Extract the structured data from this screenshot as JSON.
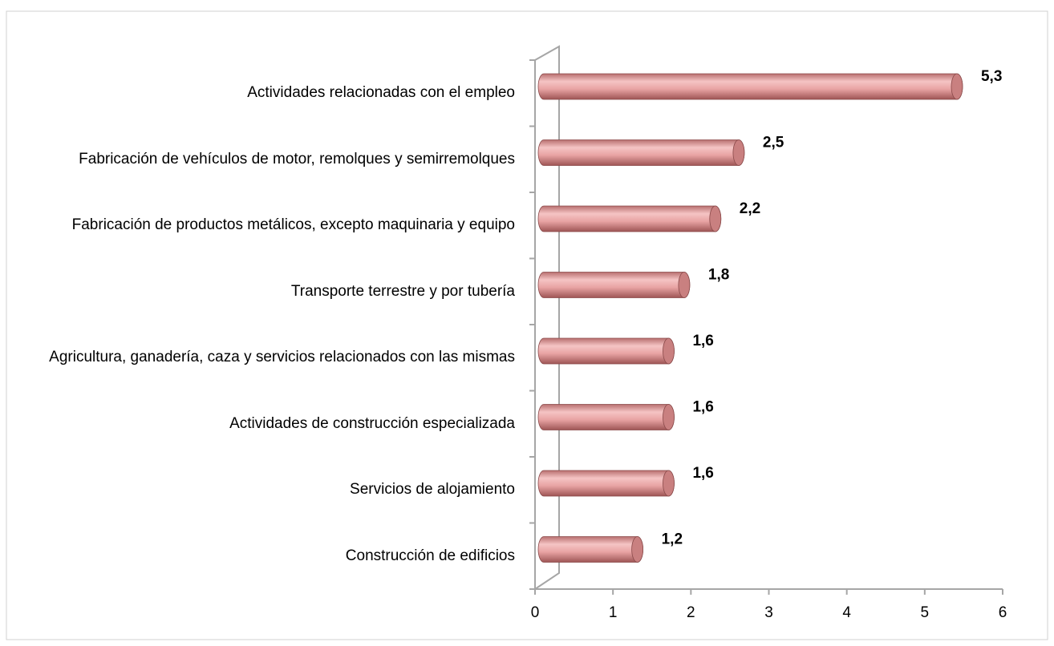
{
  "chart_data": {
    "type": "bar",
    "orientation": "horizontal",
    "categories": [
      "Actividades relacionadas con el empleo",
      "Fabricación de vehículos de motor, remolques y semirremolques",
      "Fabricación de productos metálicos, excepto maquinaria y equipo",
      "Transporte terrestre y por tubería",
      "Agricultura, ganadería, caza y servicios relacionados con las mismas",
      "Actividades de construcción especializada",
      "Servicios de alojamiento",
      "Construcción de edificios"
    ],
    "values": [
      5.3,
      2.5,
      2.2,
      1.8,
      1.6,
      1.6,
      1.6,
      1.2
    ],
    "value_labels": [
      "5,3",
      "2,5",
      "2,2",
      "1,8",
      "1,6",
      "1,6",
      "1,6",
      "1,2"
    ],
    "color": "#e8a3a3",
    "xlim": [
      0,
      6
    ],
    "xticks": [
      0,
      1,
      2,
      3,
      4,
      5,
      6
    ]
  }
}
